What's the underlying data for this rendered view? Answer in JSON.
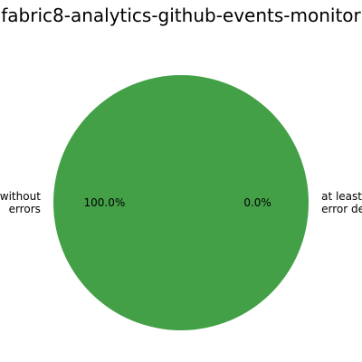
{
  "chart_data": {
    "type": "pie",
    "title": "fabric8-analytics-github-events-monitor",
    "categories": [
      "without errors",
      "at least one error detected"
    ],
    "values": [
      100.0,
      0.0
    ],
    "slices": [
      {
        "name": "without errors",
        "label_lines": [
          "without",
          "errors"
        ],
        "value": 100.0,
        "pct_label": "100.0%",
        "color": "#43a047"
      },
      {
        "name": "at least one error detected",
        "label_lines": [
          "at least",
          "error de"
        ],
        "value": 0.0,
        "pct_label": "0.0%",
        "color": "#e53935"
      }
    ],
    "legend": "none",
    "grid": false
  }
}
